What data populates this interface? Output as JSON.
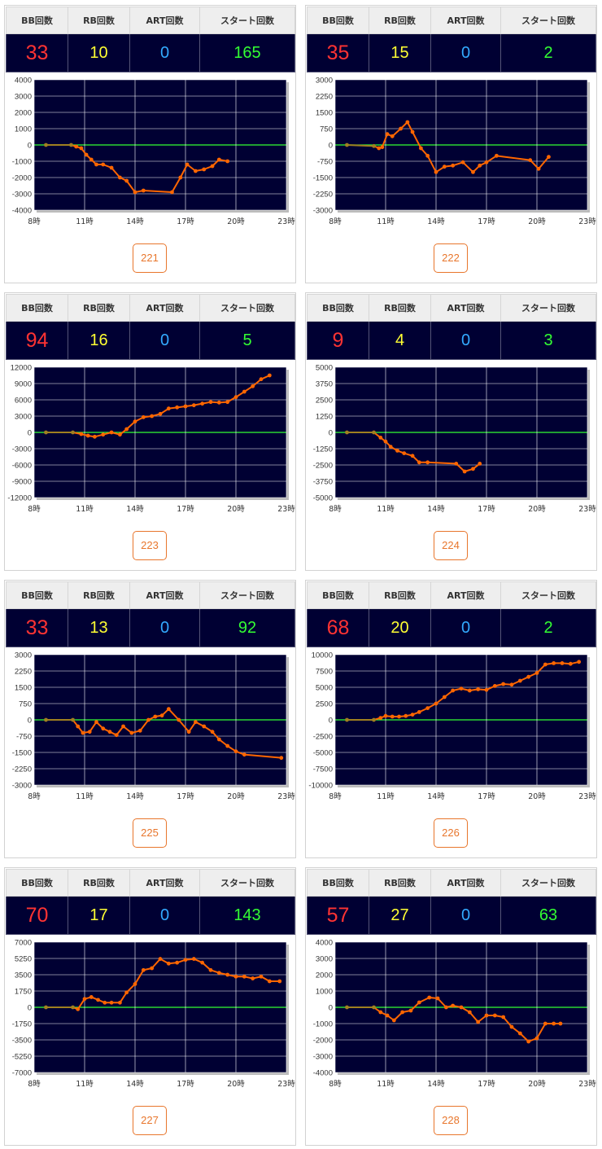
{
  "headers": {
    "bb": "BB回数",
    "rb": "RB回数",
    "art": "ART回数",
    "start": "スタート回数"
  },
  "colors": {
    "bb": "#ff3333",
    "rb": "#ffff33",
    "art": "#33aaff",
    "start": "#33ff33",
    "plot_bg": "#000033",
    "grid": "#ffffff",
    "zero_line": "#33ff33",
    "line_early": "#a08020",
    "line": "#ff6600",
    "button": "#e8762c"
  },
  "x_ticks": [
    "8時",
    "11時",
    "14時",
    "17時",
    "20時",
    "23時"
  ],
  "machines": [
    {
      "number": "221",
      "bb": "33",
      "rb": "10",
      "art": "0",
      "start": "165"
    },
    {
      "number": "222",
      "bb": "35",
      "rb": "15",
      "art": "0",
      "start": "2"
    },
    {
      "number": "223",
      "bb": "94",
      "rb": "16",
      "art": "0",
      "start": "5"
    },
    {
      "number": "224",
      "bb": "9",
      "rb": "4",
      "art": "0",
      "start": "3"
    },
    {
      "number": "225",
      "bb": "33",
      "rb": "13",
      "art": "0",
      "start": "92"
    },
    {
      "number": "226",
      "bb": "68",
      "rb": "20",
      "art": "0",
      "start": "2"
    },
    {
      "number": "227",
      "bb": "70",
      "rb": "17",
      "art": "0",
      "start": "143"
    },
    {
      "number": "228",
      "bb": "57",
      "rb": "27",
      "art": "0",
      "start": "63"
    }
  ],
  "chart_data": [
    {
      "type": "line",
      "xlim": [
        8,
        23
      ],
      "ylim": [
        -4000,
        4000
      ],
      "y_ticks": [
        4000,
        3000,
        2000,
        1000,
        0,
        -1000,
        -2000,
        -3000,
        -4000
      ],
      "series": [
        {
          "x": [
            8.7,
            10.2,
            10.5,
            10.8,
            11.1,
            11.4,
            11.7,
            12.1,
            12.6,
            13.1,
            13.5,
            14.0,
            14.5,
            16.2,
            16.7,
            17.1,
            17.6,
            18.1,
            18.6,
            19.0,
            19.5
          ],
          "y": [
            0,
            0,
            -100,
            -200,
            -600,
            -900,
            -1200,
            -1200,
            -1400,
            -2000,
            -2200,
            -2900,
            -2800,
            -2900,
            -2000,
            -1200,
            -1600,
            -1500,
            -1300,
            -900,
            -1000
          ]
        }
      ]
    },
    {
      "type": "line",
      "xlim": [
        8,
        23
      ],
      "ylim": [
        -3000,
        3000
      ],
      "y_ticks": [
        3000,
        2250,
        1500,
        750,
        0,
        -750,
        -1500,
        -2250,
        -3000
      ],
      "series": [
        {
          "x": [
            8.7,
            10.3,
            10.6,
            10.8,
            11.1,
            11.4,
            11.9,
            12.3,
            12.6,
            13.1,
            13.5,
            14.0,
            14.5,
            15.0,
            15.6,
            16.2,
            16.6,
            17.0,
            17.6,
            19.6,
            20.1,
            20.7
          ],
          "y": [
            0,
            -50,
            -150,
            -100,
            500,
            400,
            750,
            1050,
            600,
            -150,
            -500,
            -1250,
            -1000,
            -950,
            -800,
            -1250,
            -950,
            -800,
            -500,
            -700,
            -1100,
            -550
          ]
        }
      ]
    },
    {
      "type": "line",
      "xlim": [
        8,
        23
      ],
      "ylim": [
        -12000,
        12000
      ],
      "y_ticks": [
        12000,
        9000,
        6000,
        3000,
        0,
        -3000,
        -6000,
        -9000,
        -12000
      ],
      "series": [
        {
          "x": [
            8.7,
            10.3,
            10.8,
            11.2,
            11.6,
            12.1,
            12.6,
            13.1,
            13.5,
            14.0,
            14.5,
            15.0,
            15.5,
            16.0,
            16.5,
            17.0,
            17.5,
            18.0,
            18.5,
            19.0,
            19.5,
            20.0,
            20.5,
            21.0,
            21.5,
            22.0
          ],
          "y": [
            0,
            0,
            -300,
            -600,
            -800,
            -400,
            0,
            -400,
            600,
            2000,
            2800,
            3000,
            3400,
            4400,
            4600,
            4800,
            5000,
            5300,
            5600,
            5500,
            5600,
            6500,
            7500,
            8500,
            9800,
            10500
          ]
        }
      ]
    },
    {
      "type": "line",
      "xlim": [
        8,
        23
      ],
      "ylim": [
        -5000,
        5000
      ],
      "y_ticks": [
        5000,
        3750,
        2500,
        1250,
        0,
        -1250,
        -2500,
        -3750,
        -5000
      ],
      "series": [
        {
          "x": [
            8.7,
            10.3,
            10.7,
            11.0,
            11.3,
            11.7,
            12.1,
            12.6,
            13.0,
            13.5,
            15.2,
            15.7,
            16.2,
            16.6
          ],
          "y": [
            0,
            0,
            -400,
            -700,
            -1100,
            -1400,
            -1600,
            -1800,
            -2300,
            -2300,
            -2400,
            -3000,
            -2800,
            -2400
          ]
        }
      ]
    },
    {
      "type": "line",
      "xlim": [
        8,
        23
      ],
      "ylim": [
        -3000,
        3000
      ],
      "y_ticks": [
        3000,
        2250,
        1500,
        750,
        0,
        -750,
        -1500,
        -2250,
        -3000
      ],
      "series": [
        {
          "x": [
            8.7,
            10.3,
            10.6,
            10.9,
            11.3,
            11.7,
            12.1,
            12.5,
            12.9,
            13.3,
            13.8,
            14.3,
            14.8,
            15.2,
            15.6,
            16.0,
            16.6,
            17.2,
            17.6,
            18.1,
            18.6,
            19.0,
            19.5,
            20.0,
            20.5,
            22.7
          ],
          "y": [
            0,
            0,
            -300,
            -600,
            -550,
            -100,
            -400,
            -550,
            -700,
            -300,
            -600,
            -500,
            0,
            150,
            200,
            500,
            0,
            -550,
            -100,
            -300,
            -550,
            -900,
            -1200,
            -1450,
            -1600,
            -1750
          ]
        }
      ]
    },
    {
      "type": "line",
      "xlim": [
        8,
        23
      ],
      "ylim": [
        -10000,
        10000
      ],
      "y_ticks": [
        10000,
        7500,
        5000,
        2500,
        0,
        -2500,
        -5000,
        -7500,
        -10000
      ],
      "series": [
        {
          "x": [
            8.7,
            10.3,
            10.7,
            11.0,
            11.4,
            11.8,
            12.2,
            12.6,
            13.0,
            13.5,
            14.0,
            14.5,
            15.0,
            15.5,
            16.0,
            16.5,
            17.0,
            17.5,
            18.0,
            18.5,
            19.0,
            19.5,
            20.0,
            20.5,
            21.0,
            21.5,
            22.0,
            22.5
          ],
          "y": [
            0,
            0,
            300,
            600,
            500,
            500,
            600,
            800,
            1200,
            1800,
            2500,
            3500,
            4500,
            4800,
            4500,
            4700,
            4600,
            5200,
            5500,
            5400,
            6000,
            6600,
            7200,
            8500,
            8700,
            8700,
            8600,
            8900
          ]
        }
      ]
    },
    {
      "type": "line",
      "xlim": [
        8,
        23
      ],
      "ylim": [
        -7000,
        7000
      ],
      "y_ticks": [
        7000,
        5250,
        3500,
        1750,
        0,
        -1750,
        -3500,
        -5250,
        -7000
      ],
      "series": [
        {
          "x": [
            8.7,
            10.3,
            10.6,
            11.0,
            11.4,
            11.8,
            12.2,
            12.6,
            13.1,
            13.5,
            14.0,
            14.5,
            15.0,
            15.5,
            16.0,
            16.5,
            17.0,
            17.5,
            18.0,
            18.5,
            19.0,
            19.5,
            20.0,
            20.5,
            21.0,
            21.5,
            22.0,
            22.6
          ],
          "y": [
            0,
            0,
            -200,
            900,
            1100,
            800,
            500,
            500,
            500,
            1600,
            2500,
            4000,
            4200,
            5200,
            4700,
            4800,
            5100,
            5200,
            4800,
            4000,
            3700,
            3500,
            3300,
            3300,
            3100,
            3300,
            2800,
            2800
          ]
        }
      ]
    },
    {
      "type": "line",
      "xlim": [
        8,
        23
      ],
      "ylim": [
        -4000,
        4000
      ],
      "y_ticks": [
        4000,
        3000,
        2000,
        1000,
        0,
        -1000,
        -2000,
        -3000,
        -4000
      ],
      "series": [
        {
          "x": [
            8.7,
            10.3,
            10.7,
            11.1,
            11.5,
            12.0,
            12.5,
            13.0,
            13.6,
            14.1,
            14.6,
            15.0,
            15.5,
            16.0,
            16.5,
            17.0,
            17.5,
            18.0,
            18.5,
            19.0,
            19.5,
            20.0,
            20.5,
            21.0,
            21.4
          ],
          "y": [
            0,
            0,
            -300,
            -500,
            -800,
            -300,
            -200,
            300,
            600,
            550,
            0,
            100,
            0,
            -300,
            -900,
            -500,
            -500,
            -600,
            -1200,
            -1600,
            -2100,
            -1900,
            -1000,
            -1000,
            -1000
          ]
        }
      ]
    }
  ]
}
